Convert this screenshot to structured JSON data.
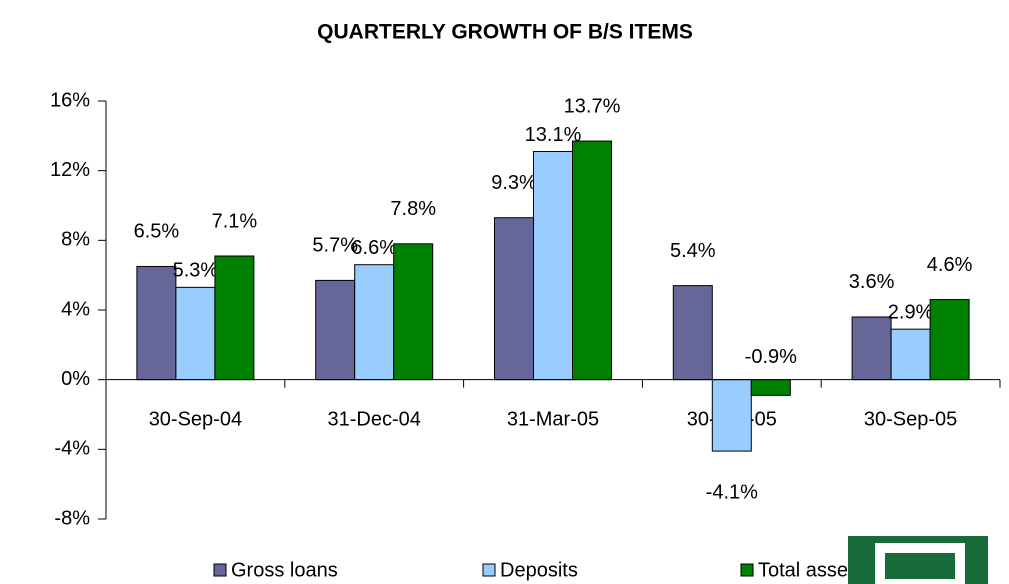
{
  "chart_data": {
    "type": "bar",
    "title": "QUARTERLY GROWTH OF B/S ITEMS",
    "categories": [
      "30-Sep-04",
      "31-Dec-04",
      "31-Mar-05",
      "30-Jun-05",
      "30-Sep-05"
    ],
    "series": [
      {
        "name": "Gross loans",
        "color": "#666699",
        "values": [
          6.5,
          5.7,
          9.3,
          5.4,
          3.6
        ],
        "value_labels": [
          "6.5%",
          "5.7%",
          "9.3%",
          "5.4%",
          "3.6%"
        ]
      },
      {
        "name": "Deposits",
        "color": "#99ccff",
        "values": [
          5.3,
          6.6,
          13.1,
          -4.1,
          2.9
        ],
        "value_labels": [
          "5.3%",
          "6.6%",
          "13.1%",
          "-4.1%",
          "2.9%"
        ]
      },
      {
        "name": "Total assets",
        "color": "#008000",
        "values": [
          7.1,
          7.8,
          13.7,
          -0.9,
          4.6
        ],
        "value_labels": [
          "7.1%",
          "7.8%",
          "13.7%",
          "-0.9%",
          "4.6%"
        ]
      }
    ],
    "ylim": [
      -8,
      16
    ],
    "yticks": [
      {
        "value": -8,
        "label": "-8%"
      },
      {
        "value": -4,
        "label": "-4%"
      },
      {
        "value": 0,
        "label": "0%"
      },
      {
        "value": 4,
        "label": "4%"
      },
      {
        "value": 8,
        "label": "8%"
      },
      {
        "value": 12,
        "label": "12%"
      },
      {
        "value": 16,
        "label": "16%"
      }
    ],
    "grid": false,
    "legend": "bottom"
  }
}
